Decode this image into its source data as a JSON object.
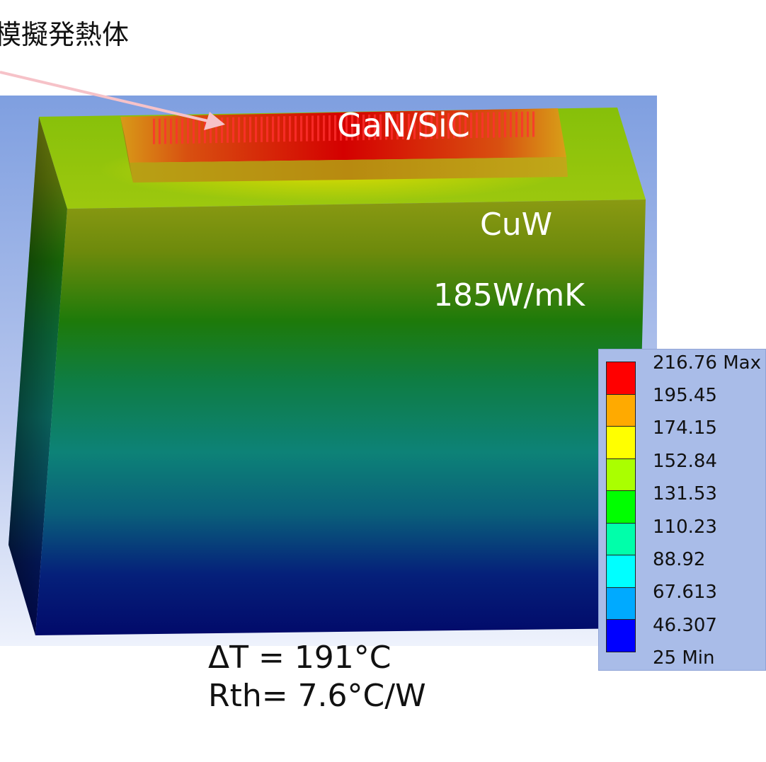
{
  "callout": {
    "label": "模擬発熱体"
  },
  "labels": {
    "die": "GaN/SiC",
    "base_material": "CuW",
    "base_conductivity": "185W/mK"
  },
  "results": {
    "delta_t": "ΔT = 191°C",
    "rth": "Rth= 7.6°C/W"
  },
  "legend": {
    "levels": [
      {
        "label": "216.76 Max",
        "color": "#ff0000"
      },
      {
        "label": "195.45",
        "color": "#ffaa00"
      },
      {
        "label": "174.15",
        "color": "#ffff00"
      },
      {
        "label": "152.84",
        "color": "#aaff00"
      },
      {
        "label": "131.53",
        "color": "#00ff00"
      },
      {
        "label": "110.23",
        "color": "#00ffaa"
      },
      {
        "label": "88.92",
        "color": "#00ffff"
      },
      {
        "label": "67.613",
        "color": "#00aaff"
      },
      {
        "label": "46.307",
        "color": "#0000ff"
      },
      {
        "label": "25 Min",
        "color": null
      }
    ]
  }
}
